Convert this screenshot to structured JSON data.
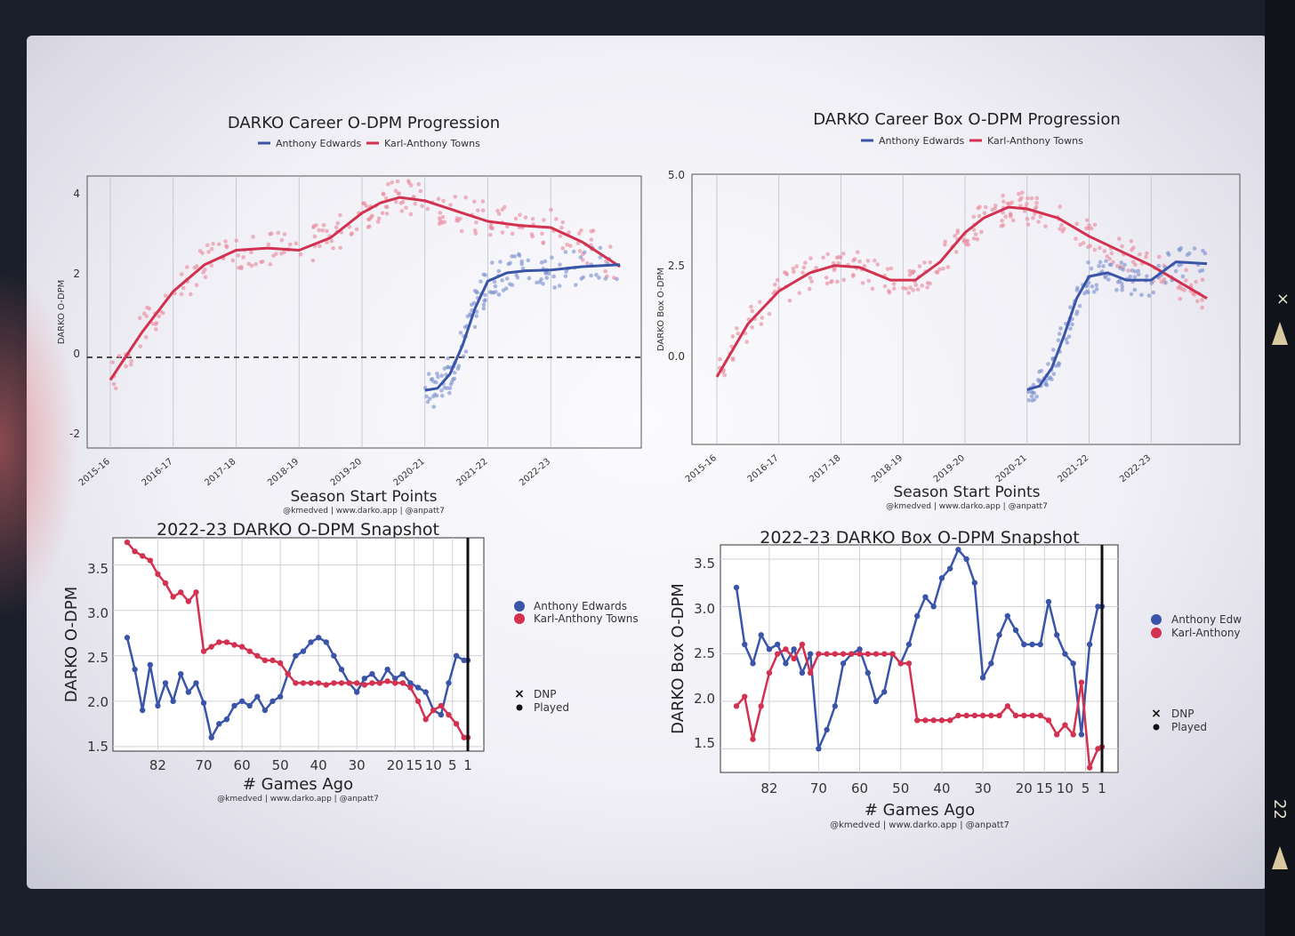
{
  "colors": {
    "edwards": "#3a55a8",
    "towns": "#d2314f",
    "edwards_point": "#7f93cf",
    "towns_point": "#e98ea0",
    "grid": "#cfcfd8"
  },
  "source_credit": "@kmedved | www.darko.app | @anpatt7",
  "film_marks": {
    "x_mark": "×",
    "frame_number": "22"
  },
  "charts": [
    {
      "title": "DARKO Career O-DPM Progression",
      "legend": [
        "Anthony Edwards",
        "Karl-Anthony Towns"
      ],
      "ylabel": "DARKO O-DPM",
      "xlabel": "Season Start Points",
      "yticks": [
        "4",
        "2",
        "0",
        "-2"
      ]
    },
    {
      "title": "DARKO Career Box O-DPM Progression",
      "legend": [
        "Anthony Edwards",
        "Karl-Anthony Towns"
      ],
      "ylabel": "DARKO Box O-DPM",
      "xlabel": "Season Start Points",
      "yticks": [
        "5.0",
        "2.5",
        "0.0"
      ]
    },
    {
      "title": "2022-23 DARKO O-DPM Snapshot",
      "legend": [
        "Anthony Edwards",
        "Karl-Anthony Towns"
      ],
      "marker_legend": [
        "DNP",
        "Played"
      ],
      "ylabel": "DARKO O-DPM",
      "xlabel": "# Games Ago",
      "yticks": [
        "3.5",
        "3.0",
        "2.5",
        "2.0",
        "1.5"
      ],
      "xticks": [
        "82",
        "70",
        "60",
        "50",
        "40",
        "30",
        "20",
        "15",
        "10",
        "5",
        "1"
      ]
    },
    {
      "title": "2022-23 DARKO Box O-DPM Snapshot",
      "legend": [
        "Anthony Edw",
        "Karl-Anthony"
      ],
      "marker_legend": [
        "DNP",
        "Played"
      ],
      "ylabel": "DARKO Box O-DPM",
      "xlabel": "# Games Ago",
      "yticks": [
        "3.5",
        "3.0",
        "2.5",
        "2.0",
        "1.5"
      ],
      "xticks": [
        "82",
        "70",
        "60",
        "50",
        "40",
        "30",
        "20",
        "15",
        "10",
        "5",
        "1"
      ]
    }
  ],
  "chart_data": [
    {
      "type": "line",
      "title": "DARKO Career O-DPM Progression",
      "xlabel": "Season Start Points",
      "ylabel": "DARKO O-DPM",
      "ylim": [
        -2.2,
        4.4
      ],
      "categories": [
        "2015-16",
        "2016-17",
        "2017-18",
        "2018-19",
        "2019-20",
        "2020-21",
        "2021-22",
        "2022-23"
      ],
      "reference_line": {
        "y": 0,
        "style": "dashed"
      },
      "series": [
        {
          "name": "Karl-Anthony Towns",
          "x": [
            0,
            0.5,
            1,
            1.5,
            2,
            2.5,
            3,
            3.5,
            4,
            4.3,
            4.6,
            5,
            5.5,
            6,
            6.5,
            7,
            7.5,
            8.1
          ],
          "y": [
            -0.55,
            0.6,
            1.6,
            2.25,
            2.6,
            2.65,
            2.6,
            2.9,
            3.5,
            3.75,
            3.88,
            3.8,
            3.55,
            3.3,
            3.2,
            3.15,
            2.8,
            2.2
          ]
        },
        {
          "name": "Anthony Edwards",
          "x": [
            5,
            5.2,
            5.4,
            5.6,
            5.8,
            6,
            6.3,
            6.6,
            7,
            7.5,
            8.1
          ],
          "y": [
            -0.8,
            -0.75,
            -0.4,
            0.3,
            1.2,
            1.85,
            2.05,
            2.1,
            2.12,
            2.2,
            2.25
          ]
        }
      ]
    },
    {
      "type": "line",
      "title": "DARKO Career Box O-DPM Progression",
      "xlabel": "Season Start Points",
      "ylabel": "DARKO Box O-DPM",
      "ylim": [
        -2.4,
        5.0
      ],
      "categories": [
        "2015-16",
        "2016-17",
        "2017-18",
        "2018-19",
        "2019-20",
        "2020-21",
        "2021-22",
        "2022-23"
      ],
      "series": [
        {
          "name": "Karl-Anthony Towns",
          "x": [
            0,
            0.5,
            1,
            1.5,
            1.9,
            2.3,
            2.8,
            3.2,
            3.6,
            4,
            4.3,
            4.7,
            5,
            5.5,
            6,
            6.5,
            7,
            7.5,
            7.9
          ],
          "y": [
            -0.55,
            0.9,
            1.8,
            2.3,
            2.5,
            2.45,
            2.1,
            2.1,
            2.6,
            3.4,
            3.8,
            4.1,
            4.05,
            3.8,
            3.3,
            2.9,
            2.5,
            2.0,
            1.6
          ]
        },
        {
          "name": "Anthony Edwards",
          "x": [
            5,
            5.2,
            5.4,
            5.6,
            5.8,
            6,
            6.3,
            6.6,
            7,
            7.4,
            7.9
          ],
          "y": [
            -0.9,
            -0.8,
            -0.3,
            0.6,
            1.6,
            2.2,
            2.3,
            2.1,
            2.1,
            2.6,
            2.55
          ]
        }
      ]
    },
    {
      "type": "line",
      "title": "2022-23 DARKO O-DPM Snapshot",
      "xlabel": "# Games Ago",
      "ylabel": "DARKO O-DPM",
      "ylim": [
        1.45,
        3.8
      ],
      "x_ticks": [
        82,
        70,
        60,
        50,
        40,
        30,
        20,
        15,
        10,
        5,
        1
      ],
      "series": [
        {
          "name": "Anthony Edwards",
          "x": [
            90,
            88,
            86,
            84,
            82,
            80,
            78,
            76,
            74,
            72,
            70,
            68,
            66,
            64,
            62,
            60,
            58,
            56,
            54,
            52,
            50,
            48,
            46,
            44,
            42,
            40,
            38,
            36,
            34,
            32,
            30,
            28,
            26,
            24,
            22,
            20,
            18,
            16,
            14,
            12,
            10,
            8,
            6,
            4,
            2,
            1
          ],
          "y": [
            2.7,
            2.35,
            1.9,
            2.4,
            1.95,
            2.2,
            2.0,
            2.3,
            2.1,
            2.2,
            1.98,
            1.6,
            1.75,
            1.8,
            1.95,
            2.0,
            1.95,
            2.05,
            1.9,
            2.0,
            2.05,
            2.3,
            2.5,
            2.55,
            2.65,
            2.7,
            2.65,
            2.5,
            2.35,
            2.2,
            2.1,
            2.25,
            2.3,
            2.2,
            2.35,
            2.25,
            2.3,
            2.2,
            2.15,
            2.1,
            1.9,
            1.85,
            2.2,
            2.5,
            2.45,
            2.45
          ]
        },
        {
          "name": "Karl-Anthony Towns",
          "x": [
            90,
            88,
            86,
            84,
            82,
            80,
            78,
            76,
            74,
            72,
            70,
            68,
            66,
            64,
            62,
            60,
            58,
            56,
            54,
            52,
            50,
            48,
            46,
            44,
            42,
            40,
            38,
            36,
            34,
            32,
            30,
            28,
            26,
            24,
            22,
            20,
            18,
            16,
            14,
            12,
            10,
            8,
            6,
            4,
            2,
            1
          ],
          "y": [
            3.75,
            3.65,
            3.6,
            3.55,
            3.4,
            3.3,
            3.15,
            3.2,
            3.1,
            3.2,
            2.55,
            2.6,
            2.65,
            2.65,
            2.62,
            2.6,
            2.55,
            2.5,
            2.45,
            2.45,
            2.42,
            2.3,
            2.2,
            2.2,
            2.2,
            2.2,
            2.18,
            2.2,
            2.2,
            2.2,
            2.2,
            2.18,
            2.2,
            2.2,
            2.22,
            2.2,
            2.2,
            2.15,
            2.0,
            1.8,
            1.9,
            1.95,
            1.85,
            1.75,
            1.6,
            1.6
          ]
        }
      ]
    },
    {
      "type": "line",
      "title": "2022-23 DARKO Box O-DPM Snapshot",
      "xlabel": "# Games Ago",
      "ylabel": "DARKO Box O-DPM",
      "ylim": [
        1.25,
        3.65
      ],
      "x_ticks": [
        82,
        70,
        60,
        50,
        40,
        30,
        20,
        15,
        10,
        5,
        1
      ],
      "series": [
        {
          "name": "Anthony Edwards",
          "x": [
            90,
            88,
            86,
            84,
            82,
            80,
            78,
            76,
            74,
            72,
            70,
            68,
            66,
            64,
            62,
            60,
            58,
            56,
            54,
            52,
            50,
            48,
            46,
            44,
            42,
            40,
            38,
            36,
            34,
            32,
            30,
            28,
            26,
            24,
            22,
            20,
            18,
            16,
            14,
            12,
            10,
            8,
            6,
            4,
            2,
            1
          ],
          "y": [
            3.2,
            2.6,
            2.4,
            2.7,
            2.55,
            2.6,
            2.4,
            2.55,
            2.3,
            2.5,
            1.5,
            1.7,
            1.95,
            2.4,
            2.5,
            2.55,
            2.3,
            2.0,
            2.1,
            2.5,
            2.4,
            2.6,
            2.9,
            3.1,
            3.0,
            3.3,
            3.4,
            3.6,
            3.5,
            3.25,
            2.25,
            2.4,
            2.7,
            2.9,
            2.75,
            2.6,
            2.6,
            2.6,
            3.05,
            2.7,
            2.5,
            2.4,
            1.65,
            2.6,
            3.0,
            3.0
          ]
        },
        {
          "name": "Karl-Anthony Towns",
          "x": [
            90,
            88,
            86,
            84,
            82,
            80,
            78,
            76,
            74,
            72,
            70,
            68,
            66,
            64,
            62,
            60,
            58,
            56,
            54,
            52,
            50,
            48,
            46,
            44,
            42,
            40,
            38,
            36,
            34,
            32,
            30,
            28,
            26,
            24,
            22,
            20,
            18,
            16,
            14,
            12,
            10,
            8,
            6,
            4,
            2,
            1
          ],
          "y": [
            1.95,
            2.05,
            1.6,
            1.95,
            2.3,
            2.5,
            2.55,
            2.45,
            2.6,
            2.3,
            2.5,
            2.5,
            2.5,
            2.5,
            2.5,
            2.5,
            2.5,
            2.5,
            2.5,
            2.5,
            2.4,
            2.4,
            1.8,
            1.8,
            1.8,
            1.8,
            1.8,
            1.85,
            1.85,
            1.85,
            1.85,
            1.85,
            1.85,
            1.95,
            1.85,
            1.85,
            1.85,
            1.85,
            1.8,
            1.65,
            1.75,
            1.65,
            2.2,
            1.3,
            1.5,
            1.52
          ]
        }
      ]
    }
  ]
}
